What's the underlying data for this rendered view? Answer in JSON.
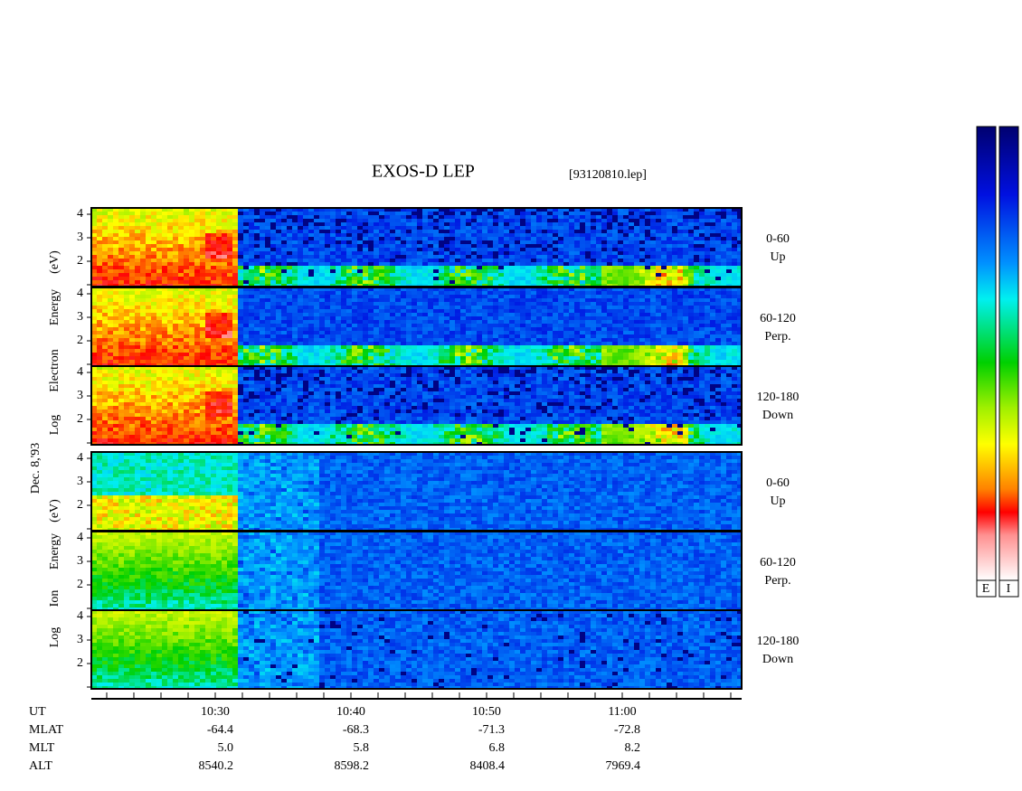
{
  "title": "EXOS-D LEP",
  "file_name": "[93120810.lep]",
  "date": "Dec. 8,'93",
  "electron_axis_words": [
    "Log",
    "Electron",
    "Energy",
    "(eV)"
  ],
  "ion_axis_words": [
    "Log",
    "Ion",
    "Energy",
    "(eV)"
  ],
  "panels": [
    {
      "angle": "0-60",
      "direction": "Up"
    },
    {
      "angle": "60-120",
      "direction": "Perp."
    },
    {
      "angle": "120-180",
      "direction": "Down"
    },
    {
      "angle": "0-60",
      "direction": "Up"
    },
    {
      "angle": "60-120",
      "direction": "Perp."
    },
    {
      "angle": "120-180",
      "direction": "Down"
    }
  ],
  "energy_ticks": [
    "2",
    "3",
    "4"
  ],
  "row_labels": [
    "UT",
    "MLAT",
    "MLT",
    "ALT"
  ],
  "columns": [
    {
      "ut": "10:30",
      "mlat": "-64.4",
      "mlt": "5.0",
      "alt": "8540.2"
    },
    {
      "ut": "10:40",
      "mlat": "-68.3",
      "mlt": "5.8",
      "alt": "8598.2"
    },
    {
      "ut": "10:50",
      "mlat": "-71.3",
      "mlt": "6.8",
      "alt": "8408.4"
    },
    {
      "ut": "11:00",
      "mlat": "-72.8",
      "mlt": "8.2",
      "alt": "7969.4"
    }
  ],
  "colorbar_labels": [
    "E",
    "I"
  ]
}
